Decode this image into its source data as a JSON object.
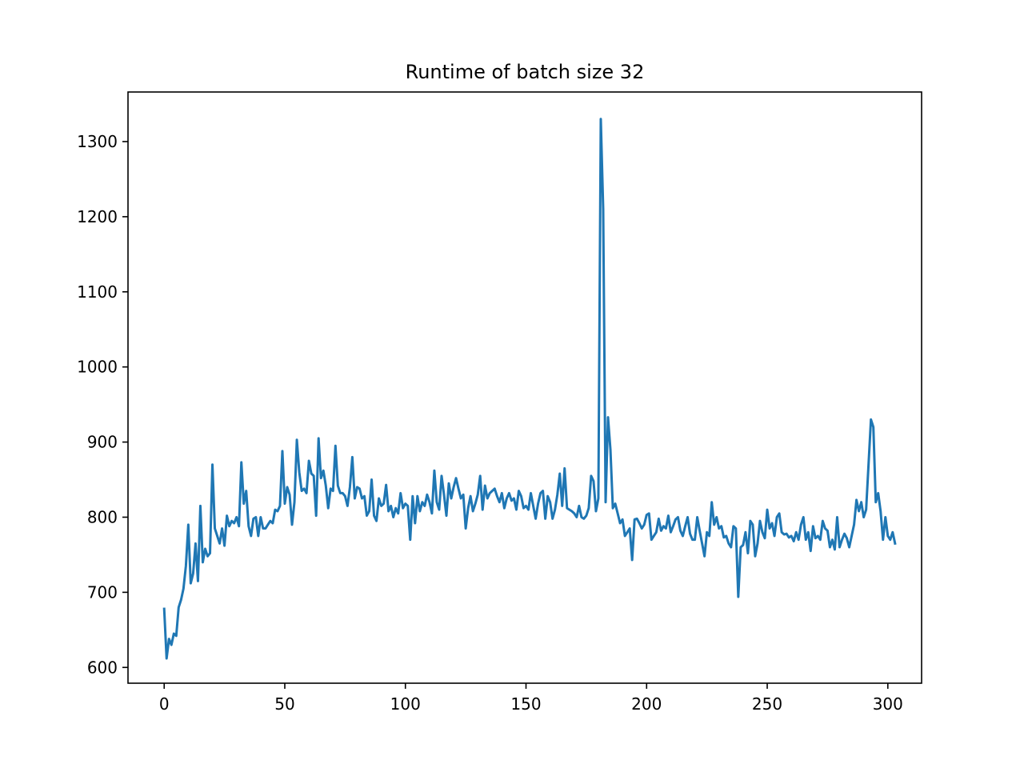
{
  "chart_data": {
    "type": "line",
    "title": "Runtime of batch size 32",
    "xlabel": "",
    "ylabel": "",
    "xlim": [
      -15,
      314
    ],
    "ylim": [
      579,
      1366
    ],
    "x_ticks": [
      0,
      50,
      100,
      150,
      200,
      250,
      300
    ],
    "x_tick_labels": [
      "0",
      "50",
      "100",
      "150",
      "200",
      "250",
      "300"
    ],
    "y_ticks": [
      600,
      700,
      800,
      900,
      1000,
      1100,
      1200,
      1300
    ],
    "y_tick_labels": [
      "600",
      "700",
      "800",
      "900",
      "1000",
      "1100",
      "1200",
      "1300"
    ],
    "grid": false,
    "series": [
      {
        "color": "#1f77b4",
        "x_start": 0,
        "x_step": 1,
        "values": [
          678,
          612,
          638,
          630,
          645,
          642,
          680,
          690,
          705,
          735,
          790,
          712,
          725,
          765,
          715,
          815,
          740,
          758,
          748,
          752,
          870,
          785,
          775,
          765,
          785,
          762,
          802,
          788,
          795,
          792,
          800,
          788,
          873,
          818,
          835,
          788,
          775,
          798,
          800,
          775,
          800,
          785,
          785,
          790,
          795,
          792,
          810,
          808,
          815,
          888,
          818,
          840,
          830,
          790,
          820,
          903,
          860,
          835,
          838,
          832,
          875,
          858,
          855,
          802,
          905,
          852,
          862,
          842,
          812,
          838,
          835,
          895,
          842,
          832,
          832,
          828,
          815,
          840,
          880,
          825,
          840,
          838,
          825,
          828,
          802,
          808,
          850,
          802,
          795,
          825,
          815,
          818,
          843,
          808,
          815,
          800,
          812,
          805,
          832,
          812,
          818,
          815,
          770,
          828,
          792,
          828,
          808,
          820,
          815,
          830,
          820,
          805,
          862,
          820,
          810,
          855,
          830,
          802,
          845,
          825,
          840,
          852,
          838,
          825,
          830,
          785,
          812,
          828,
          808,
          818,
          830,
          855,
          810,
          842,
          825,
          832,
          835,
          838,
          828,
          820,
          832,
          812,
          825,
          832,
          822,
          825,
          810,
          835,
          828,
          812,
          815,
          810,
          832,
          815,
          798,
          818,
          832,
          835,
          798,
          828,
          820,
          798,
          810,
          830,
          858,
          815,
          865,
          812,
          810,
          808,
          805,
          800,
          815,
          800,
          798,
          802,
          812,
          855,
          848,
          808,
          825,
          1330,
          1210,
          820,
          933,
          890,
          812,
          818,
          805,
          792,
          797,
          775,
          780,
          785,
          743,
          797,
          798,
          792,
          785,
          790,
          803,
          805,
          770,
          775,
          780,
          798,
          782,
          788,
          785,
          802,
          780,
          788,
          797,
          800,
          782,
          775,
          788,
          800,
          778,
          770,
          770,
          800,
          782,
          765,
          748,
          780,
          775,
          820,
          790,
          800,
          785,
          788,
          773,
          775,
          765,
          760,
          788,
          785,
          694,
          760,
          763,
          780,
          752,
          795,
          790,
          748,
          765,
          795,
          780,
          772,
          810,
          785,
          792,
          775,
          800,
          805,
          780,
          777,
          778,
          773,
          775,
          768,
          780,
          770,
          790,
          800,
          770,
          780,
          755,
          788,
          772,
          775,
          770,
          795,
          785,
          782,
          760,
          770,
          757,
          800,
          760,
          770,
          778,
          772,
          760,
          775,
          790,
          823,
          808,
          820,
          800,
          810,
          870,
          930,
          920,
          820,
          832,
          808,
          770,
          800,
          775,
          770,
          780,
          765
        ]
      }
    ]
  }
}
